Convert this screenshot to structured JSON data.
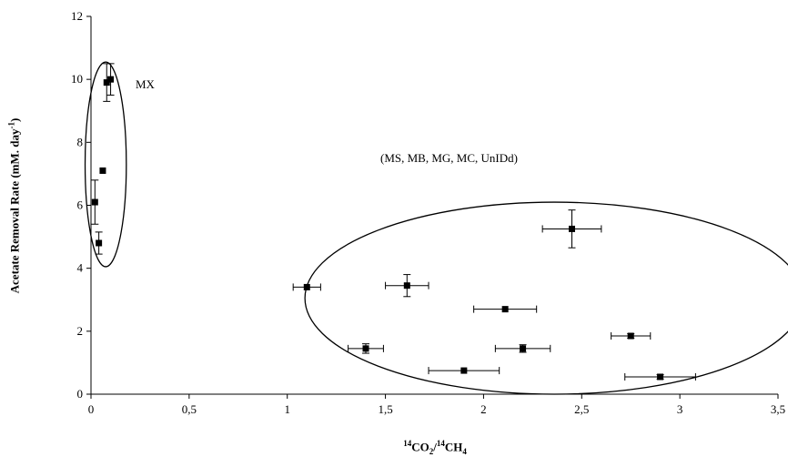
{
  "chart_data": {
    "type": "scatter",
    "title": "",
    "xlabel_parts": {
      "sup1": "14",
      "a": "CO",
      "sub": "2",
      "slash": "/",
      "sup2": "14",
      "b": "CH",
      "sub2": "4"
    },
    "ylabel": "Acetate Removal Rate (mM. day",
    "ylabel_sup": "-1",
    "ylabel_close": ")",
    "xlim": [
      0,
      3.5
    ],
    "ylim": [
      0,
      12
    ],
    "x_ticks": [
      "0",
      "0,5",
      "1",
      "1,5",
      "2",
      "2,5",
      "3",
      "3,5"
    ],
    "x_tick_values": [
      0,
      0.5,
      1,
      1.5,
      2,
      2.5,
      3,
      3.5
    ],
    "y_ticks": [
      "0",
      "2",
      "4",
      "6",
      "8",
      "10",
      "12"
    ],
    "y_tick_values": [
      0,
      2,
      4,
      6,
      8,
      10,
      12
    ],
    "grid": false,
    "annotations": [
      "MX",
      "(MS, MB, MG, MC, UnIDd)"
    ],
    "points": [
      {
        "x": 0.02,
        "y": 6.1,
        "xerr": 0,
        "yerr": 0.7
      },
      {
        "x": 0.04,
        "y": 4.8,
        "xerr": 0,
        "yerr": 0.35
      },
      {
        "x": 0.06,
        "y": 7.1,
        "xerr": 0,
        "yerr": 0
      },
      {
        "x": 0.08,
        "y": 9.9,
        "xerr": 0,
        "yerr": 0.6
      },
      {
        "x": 0.1,
        "y": 10.0,
        "xerr": 0,
        "yerr": 0.5
      },
      {
        "x": 1.1,
        "y": 3.4,
        "xerr": 0.07,
        "yerr": 0
      },
      {
        "x": 1.4,
        "y": 1.45,
        "xerr": 0.09,
        "yerr": 0.15
      },
      {
        "x": 1.61,
        "y": 3.45,
        "xerr": 0.11,
        "yerr": 0.35
      },
      {
        "x": 1.9,
        "y": 0.75,
        "xerr": 0.18,
        "yerr": 0
      },
      {
        "x": 2.11,
        "y": 2.7,
        "xerr": 0.16,
        "yerr": 0
      },
      {
        "x": 2.2,
        "y": 1.45,
        "xerr": 0.14,
        "yerr": 0.12
      },
      {
        "x": 2.45,
        "y": 5.25,
        "xerr": 0.15,
        "yerr": 0.6
      },
      {
        "x": 2.75,
        "y": 1.85,
        "xerr": 0.1,
        "yerr": 0.07
      },
      {
        "x": 2.9,
        "y": 0.55,
        "xerr": 0.18,
        "yerr": 0.07
      }
    ],
    "ellipses": [
      {
        "cx": 0.075,
        "cy": 7.3,
        "rx": 0.105,
        "ry": 3.25
      },
      {
        "cx": 2.36,
        "cy": 3.05,
        "rx": 1.27,
        "ry": 3.05
      }
    ]
  }
}
